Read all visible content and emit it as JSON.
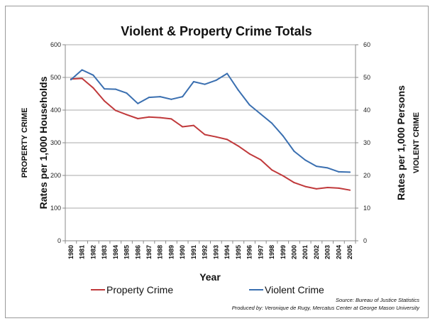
{
  "chart_data": {
    "type": "line",
    "title": "Violent & Property Crime Totals",
    "xlabel": "Year",
    "categories": [
      "1980",
      "1981",
      "1982",
      "1983",
      "1984",
      "1985",
      "1986",
      "1987",
      "1988",
      "1989",
      "1990",
      "1991",
      "1992",
      "1993",
      "1994",
      "1995",
      "1996",
      "1997",
      "1998",
      "1999",
      "2000",
      "2001",
      "2002",
      "2003",
      "2004",
      "2005"
    ],
    "left_axis": {
      "label_main": "Rates per 1,000 Households",
      "label_sub": "PROPERTY CRIME",
      "ylim": [
        0,
        600
      ],
      "ticks": [
        "0",
        "100",
        "200",
        "300",
        "400",
        "500",
        "600"
      ]
    },
    "right_axis": {
      "label_main": "Rates per 1,000 Persons",
      "label_sub": "VIOLENT CRIME",
      "ylim": [
        0,
        60
      ],
      "ticks": [
        "0",
        "10",
        "20",
        "30",
        "40",
        "50",
        "60"
      ]
    },
    "series": [
      {
        "name": "Property Crime",
        "axis": "left",
        "color": "#c0393b",
        "values": [
          495,
          497,
          468,
          428,
          399,
          386,
          374,
          379,
          377,
          373,
          349,
          353,
          325,
          318,
          310,
          290,
          266,
          248,
          217,
          199,
          178,
          166,
          159,
          163,
          161,
          155
        ]
      },
      {
        "name": "Violent Crime",
        "axis": "right",
        "color": "#3a6fb0",
        "values": [
          49.3,
          52.3,
          50.7,
          46.5,
          46.4,
          45.2,
          42.0,
          43.9,
          44.1,
          43.3,
          44.1,
          48.7,
          47.9,
          49.1,
          51.2,
          46.1,
          41.6,
          38.8,
          36.0,
          32.1,
          27.4,
          24.7,
          22.8,
          22.3,
          21.1,
          21.0
        ]
      }
    ],
    "legend": [
      "Property Crime",
      "Violent Crime"
    ],
    "legend_position": "bottom",
    "source_lines": [
      "Source: Bureau of Justice Statistics",
      "Produced by: Veronique de Rugy, Mercatus Center at George Mason University"
    ]
  }
}
